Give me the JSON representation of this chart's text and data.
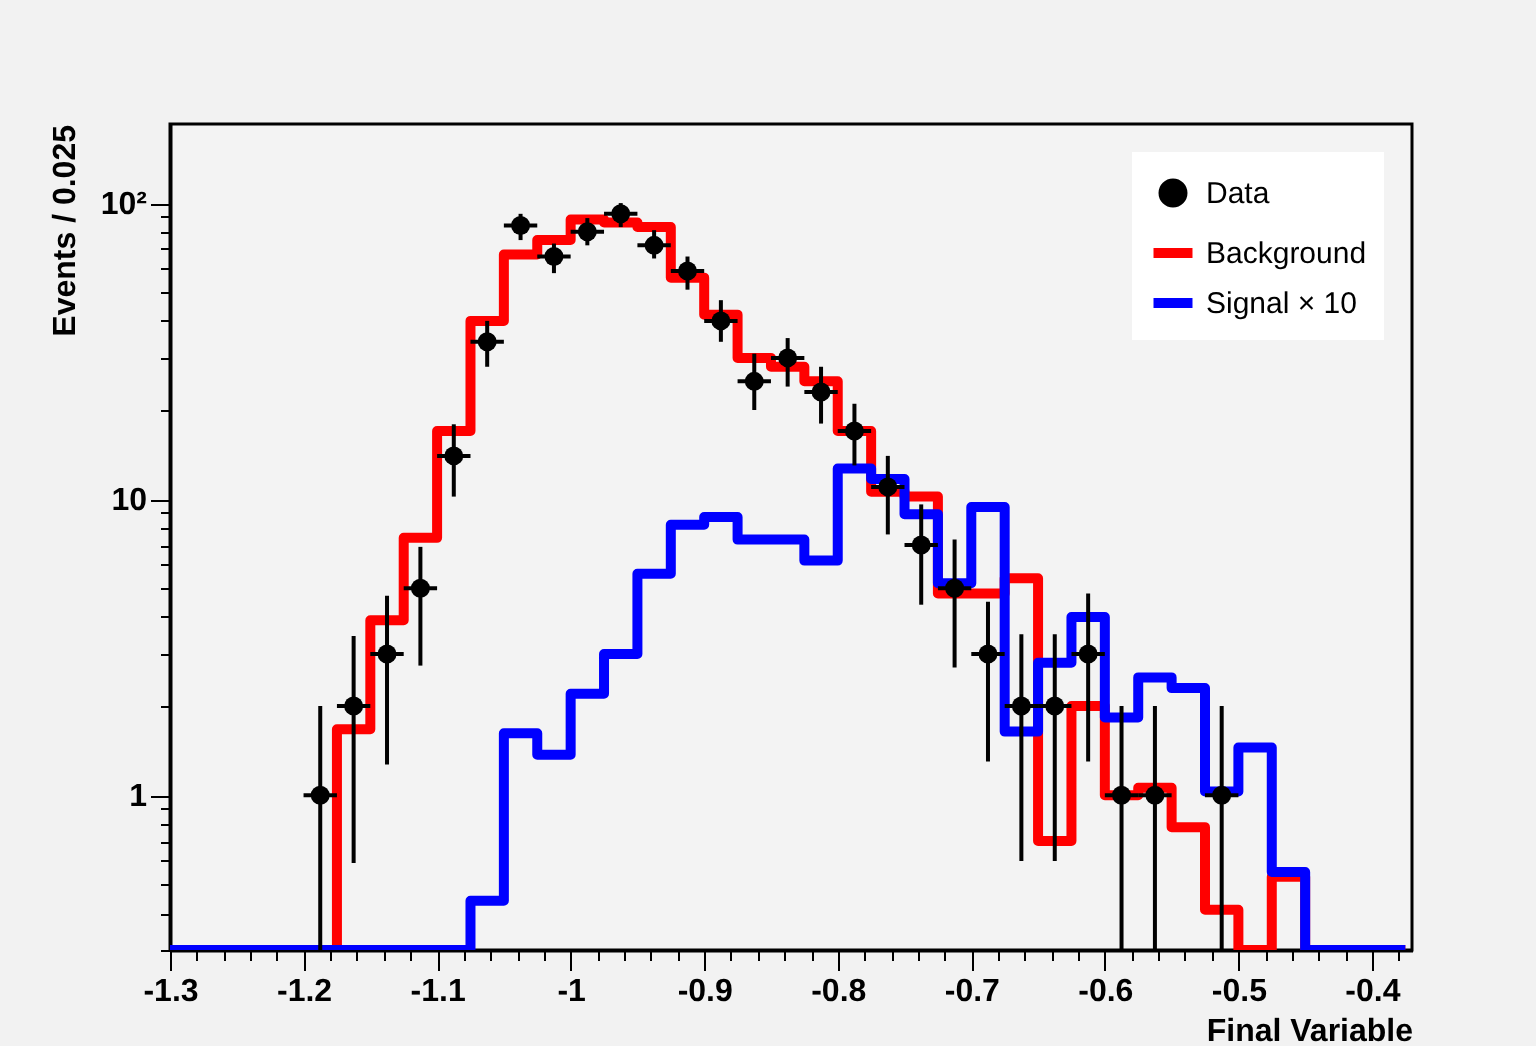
{
  "chart_data": {
    "type": "histogram",
    "xlabel": "Final Variable",
    "ylabel": "Events / 0.025",
    "log": true,
    "legend": "top right",
    "xlim": [
      -1.3,
      -0.37
    ],
    "ylim": [
      0.3,
      185
    ],
    "xticks": [
      -1.3,
      {
        "value": -1.28,
        "label": null
      },
      {
        "value": -1.26,
        "label": null
      },
      {
        "value": -1.24,
        "label": null
      },
      {
        "value": -1.22,
        "label": null
      },
      -1.2,
      {
        "value": -1.18,
        "label": null
      },
      {
        "value": -1.16,
        "label": null
      },
      {
        "value": -1.14,
        "label": null
      },
      {
        "value": -1.12,
        "label": null
      },
      -1.1,
      {
        "value": -1.08,
        "label": null
      },
      {
        "value": -1.06,
        "label": null
      },
      {
        "value": -1.04,
        "label": null
      },
      {
        "value": -1.02,
        "label": null
      },
      -1,
      {
        "value": -0.98,
        "label": null
      },
      {
        "value": -0.96,
        "label": null
      },
      {
        "value": -0.94,
        "label": null
      },
      {
        "value": -0.92,
        "label": null
      },
      -0.9,
      {
        "value": -0.88,
        "label": null
      },
      {
        "value": -0.86,
        "label": null
      },
      {
        "value": -0.84,
        "label": null
      },
      {
        "value": -0.82,
        "label": null
      },
      -0.8,
      {
        "value": -0.78,
        "label": null
      },
      {
        "value": -0.76,
        "label": null
      },
      {
        "value": -0.74,
        "label": null
      },
      {
        "value": -0.72,
        "label": null
      },
      -0.7,
      {
        "value": -0.68,
        "label": null
      },
      {
        "value": -0.66,
        "label": null
      },
      {
        "value": -0.64,
        "label": null
      },
      {
        "value": -0.62,
        "label": null
      },
      -0.6,
      {
        "value": -0.58,
        "label": null
      },
      {
        "value": -0.56,
        "label": null
      },
      {
        "value": -0.54,
        "label": null
      },
      {
        "value": -0.52,
        "label": null
      },
      -0.5,
      {
        "value": -0.48,
        "label": null
      },
      {
        "value": -0.46,
        "label": null
      },
      {
        "value": -0.44,
        "label": null
      },
      {
        "value": -0.42,
        "label": null
      },
      -0.4,
      {
        "value": -0.38,
        "label": null
      }
    ],
    "yticks": [
      {
        "value": 0.3,
        "label": null
      },
      {
        "value": 0.4,
        "label": null
      },
      {
        "value": 0.5,
        "label": null
      },
      {
        "value": 0.6,
        "label": null
      },
      {
        "value": 0.7,
        "label": null
      },
      {
        "value": 0.8,
        "label": null
      },
      {
        "value": 0.9,
        "label": null
      },
      1,
      {
        "value": 2,
        "label": null
      },
      {
        "value": 3,
        "label": null
      },
      {
        "value": 4,
        "label": null
      },
      {
        "value": 5,
        "label": null
      },
      {
        "value": 6,
        "label": null
      },
      {
        "value": 7,
        "label": null
      },
      {
        "value": 8,
        "label": null
      },
      {
        "value": 9,
        "label": null
      },
      10,
      {
        "value": 20,
        "label": null
      },
      {
        "value": 30,
        "label": null
      },
      {
        "value": 40,
        "label": null
      },
      {
        "value": 50,
        "label": null
      },
      {
        "value": 60,
        "label": null
      },
      {
        "value": 70,
        "label": null
      },
      {
        "value": 80,
        "label": null
      },
      {
        "value": 90,
        "label": null
      },
      {
        "value": 100,
        "label": "10²"
      }
    ],
    "bins": [
      -1.3,
      -1.275,
      -1.25,
      -1.225,
      -1.2,
      -1.175,
      -1.15,
      -1.125,
      -1.1,
      -1.075,
      -1.05,
      -1.025,
      -1,
      -0.975,
      -0.95,
      -0.925,
      -0.9,
      -0.875,
      -0.85,
      -0.825,
      -0.8,
      -0.775,
      -0.75,
      -0.725,
      -0.7,
      -0.675,
      -0.65,
      -0.625,
      -0.6,
      -0.575,
      -0.55,
      -0.525,
      -0.5,
      -0.475,
      -0.45,
      -0.425,
      -0.4,
      -0.375
    ],
    "series": [
      {
        "name": "Data",
        "type": "scatter",
        "marker": "circle",
        "color": "#000000",
        "x": [
          -1.1875,
          -1.1625,
          -1.1375,
          -1.1125,
          -1.0875,
          -1.0625,
          -1.0375,
          -1.0125,
          -0.9875,
          -0.9625,
          -0.9375,
          -0.9125,
          -0.8875,
          -0.8625,
          -0.8375,
          -0.8125,
          -0.7875,
          -0.7625,
          -0.7375,
          -0.7125,
          -0.6875,
          -0.6625,
          -0.6375,
          -0.6125,
          -0.5875,
          -0.5625,
          -0.5125
        ],
        "values": [
          1,
          2,
          3,
          5,
          14,
          34,
          84,
          66,
          80,
          92,
          72,
          59,
          40,
          25,
          30,
          23,
          17,
          11,
          7,
          5,
          3,
          2,
          2,
          3,
          1,
          1,
          1
        ],
        "errors": [
          [
            0.3,
            2
          ],
          [
            0.59,
            3.45
          ],
          [
            1.27,
            4.72
          ],
          [
            2.74,
            6.9
          ],
          [
            10.2,
            17.9
          ],
          [
            28,
            40
          ],
          [
            75,
            92
          ],
          [
            58,
            73
          ],
          [
            72,
            89
          ],
          [
            83,
            100
          ],
          [
            65,
            81
          ],
          [
            51,
            66
          ],
          [
            34,
            47
          ],
          [
            20,
            31
          ],
          [
            24,
            35
          ],
          [
            18,
            28
          ],
          [
            13,
            21
          ],
          [
            7.6,
            14
          ],
          [
            4.4,
            9.6
          ],
          [
            2.7,
            7.3
          ],
          [
            1.3,
            4.5
          ],
          [
            0.6,
            3.5
          ],
          [
            0.6,
            3.5
          ],
          [
            1.3,
            4.8
          ],
          [
            0.3,
            2
          ],
          [
            0.3,
            2
          ],
          [
            0.3,
            2
          ]
        ],
        "xerrors": [
          0.0125,
          0.0125,
          0.0125,
          0.0125,
          0.0125,
          0.0125,
          0.0125,
          0.0125,
          0.0125,
          0.0125,
          0.0125,
          0.0125,
          0.0125,
          0.0125,
          0.0125,
          0.0125,
          0.0125,
          0.0125,
          0.0125,
          0.0125,
          0.0125,
          0.0125,
          0.0125,
          0.0125,
          0.0125,
          0.0125,
          0.0125
        ]
      },
      {
        "name": "Background",
        "color": "#ff0000",
        "values": [
          0.3,
          0.3,
          0.3,
          0.3,
          0.3,
          1.67,
          3.9,
          7.4,
          17,
          40,
          67,
          75,
          88,
          86,
          83,
          56,
          42,
          30,
          28,
          25,
          17,
          10.6,
          10.2,
          4.8,
          4.8,
          5.4,
          0.7,
          2,
          1,
          1.06,
          0.78,
          0.41,
          0.3,
          0.53,
          0.3,
          0.3,
          0.3
        ]
      },
      {
        "name": "Signal × 10",
        "color": "#0000ff",
        "values": [
          0.3,
          0.3,
          0.3,
          0.3,
          0.3,
          0.3,
          0.3,
          0.3,
          0.3,
          0.44,
          1.62,
          1.37,
          2.2,
          3,
          5.6,
          8.2,
          8.7,
          7.3,
          7.3,
          6.2,
          12.7,
          11.7,
          8.9,
          5.2,
          9.4,
          1.64,
          2.8,
          4,
          1.83,
          2.5,
          2.3,
          1.03,
          1.45,
          0.55,
          0.3,
          0.3,
          0.3
        ]
      }
    ]
  }
}
